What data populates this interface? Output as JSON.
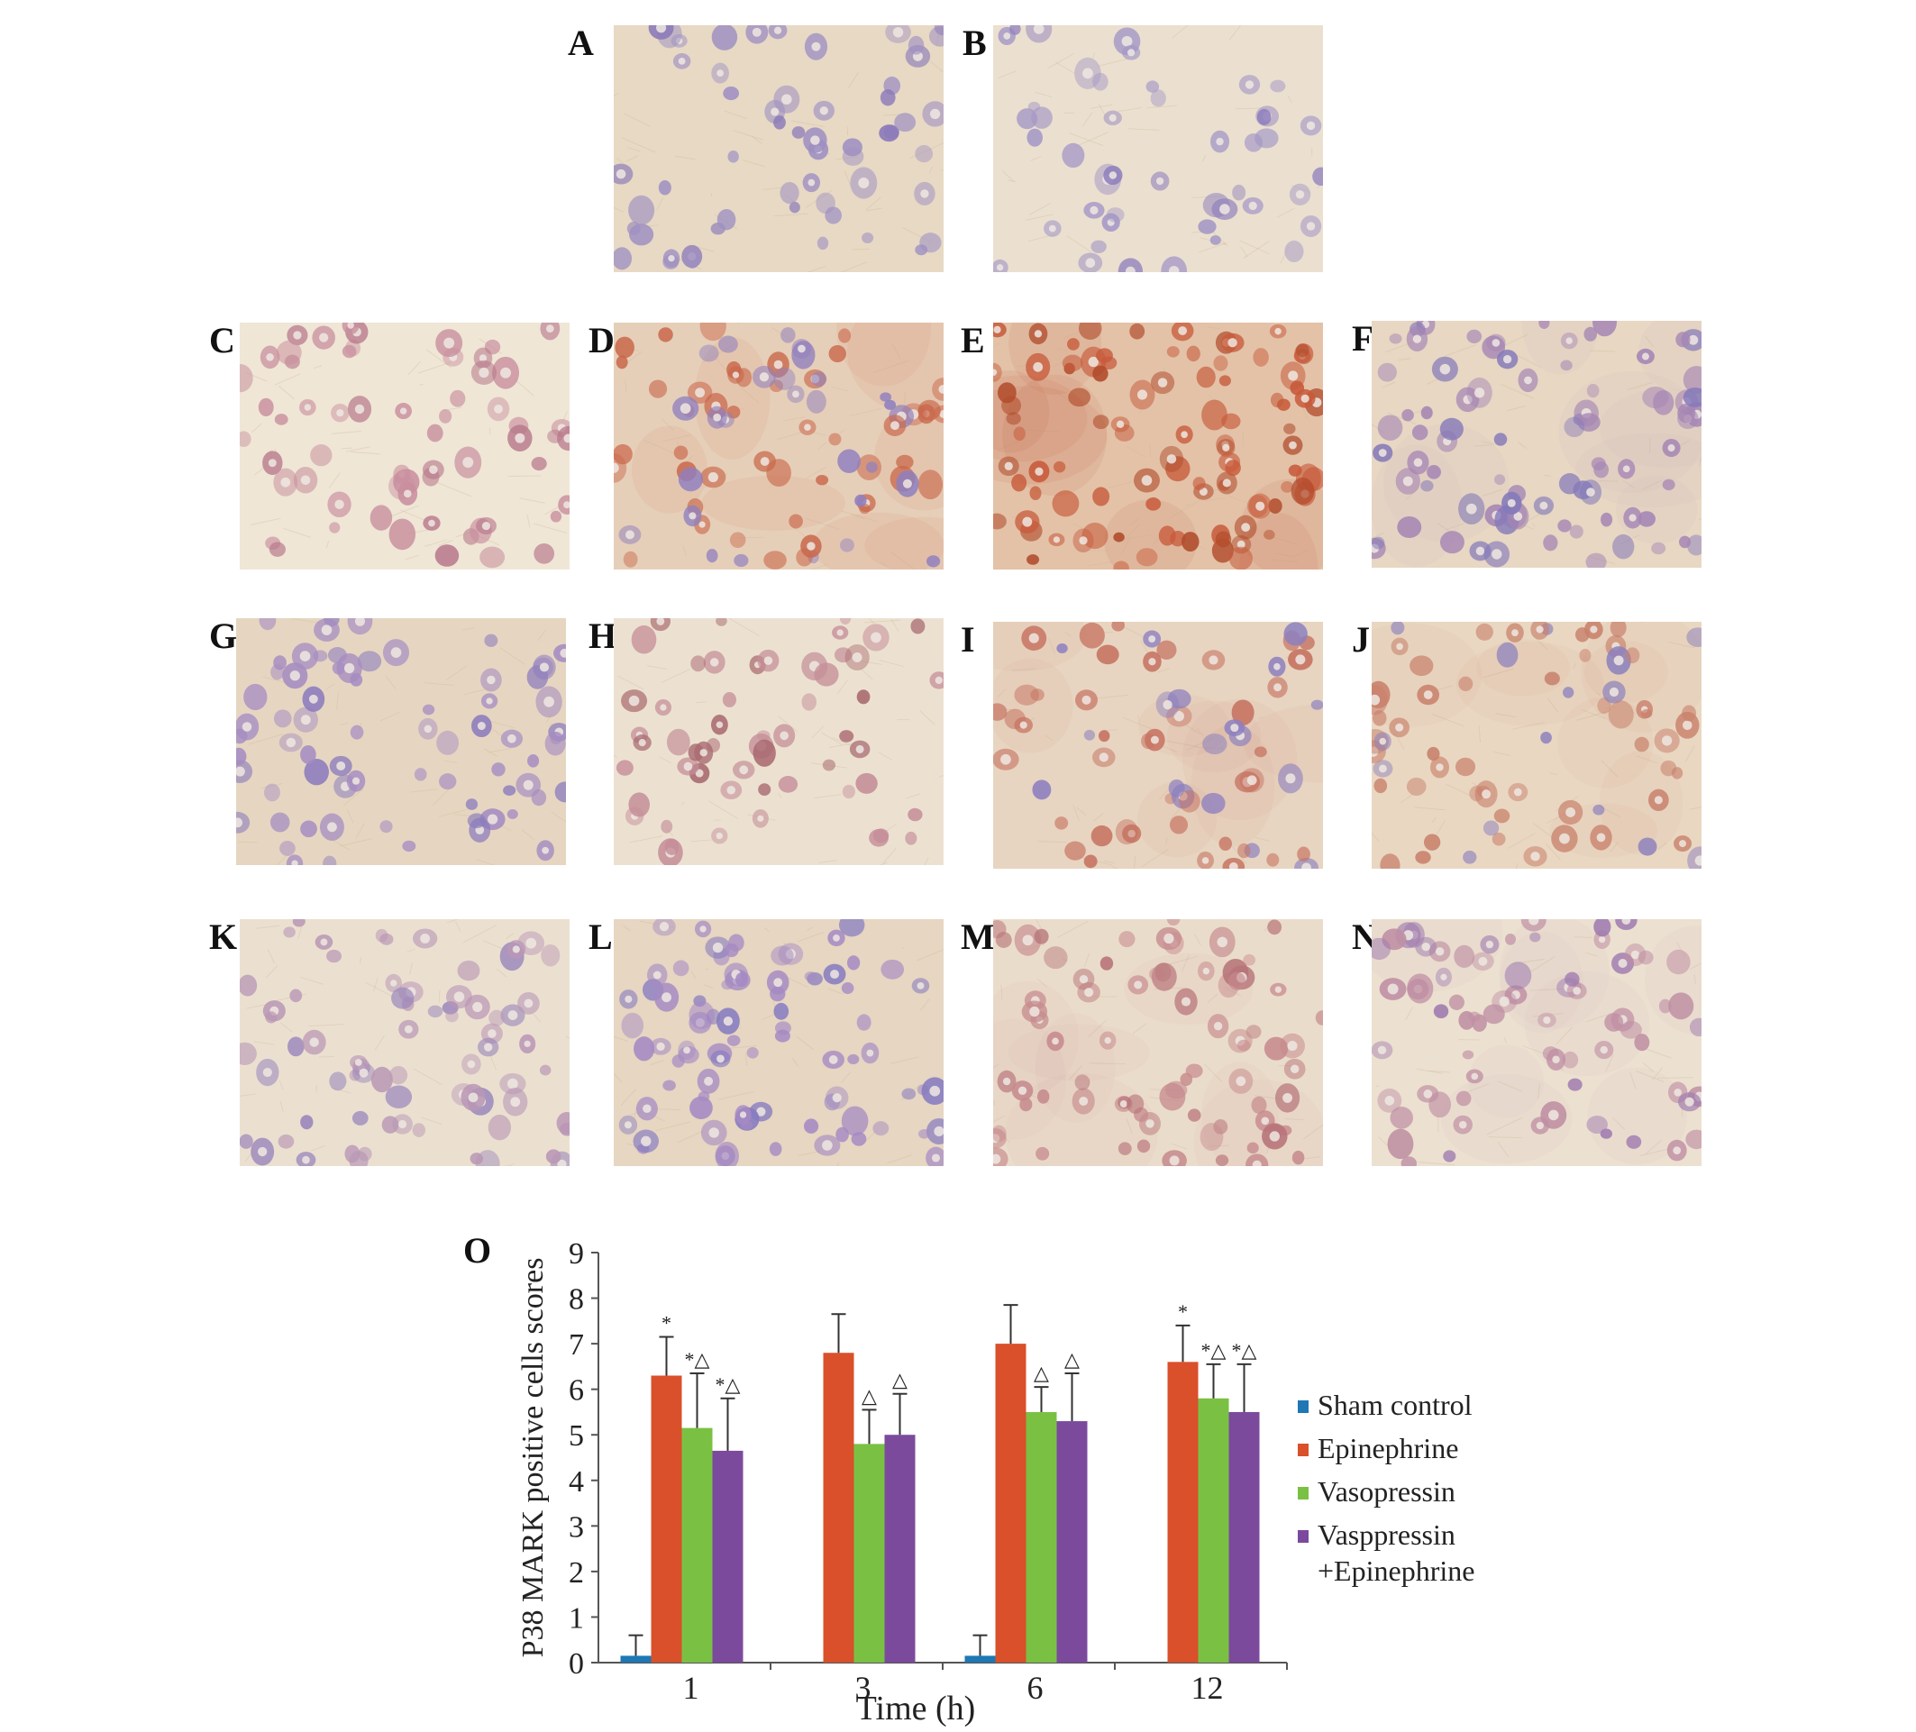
{
  "figure": {
    "panels": [
      {
        "label": "A",
        "tone": "#e7d9c4",
        "cell": "#9e8fc2",
        "dark": "#8a79b8",
        "density": 55,
        "stain": 0.05
      },
      {
        "label": "B",
        "tone": "#ebe0cf",
        "cell": "#a497c6",
        "dark": "#9080bd",
        "density": 45,
        "stain": 0.05
      },
      {
        "label": "C",
        "tone": "#efe6d6",
        "cell": "#c98f9e",
        "dark": "#b7778a",
        "density": 60,
        "stain": 0.2
      },
      {
        "label": "D",
        "tone": "#e6cfb8",
        "cell": "#c9674a",
        "dark": "#8f7fbf",
        "density": 75,
        "stain": 0.65
      },
      {
        "label": "E",
        "tone": "#e3c2a8",
        "cell": "#c75a3a",
        "dark": "#b04b2b",
        "density": 95,
        "stain": 0.85
      },
      {
        "label": "F",
        "tone": "#e7d7c3",
        "cell": "#a686b4",
        "dark": "#8479b9",
        "density": 80,
        "stain": 0.35
      },
      {
        "label": "G",
        "tone": "#e6d6c1",
        "cell": "#a58cc2",
        "dark": "#8b7bbd",
        "density": 70,
        "stain": 0.25
      },
      {
        "label": "H",
        "tone": "#ece1d1",
        "cell": "#c58e98",
        "dark": "#a96a70",
        "density": 55,
        "stain": 0.3
      },
      {
        "label": "I",
        "tone": "#e7d5c1",
        "cell": "#c67260",
        "dark": "#8c7fbf",
        "density": 60,
        "stain": 0.5
      },
      {
        "label": "J",
        "tone": "#e9d7c2",
        "cell": "#c8806a",
        "dark": "#8b80bd",
        "density": 65,
        "stain": 0.45
      },
      {
        "label": "K",
        "tone": "#ebe0d0",
        "cell": "#b997b5",
        "dark": "#9a86bb",
        "density": 70,
        "stain": 0.25
      },
      {
        "label": "L",
        "tone": "#e6d6c2",
        "cell": "#a58ac3",
        "dark": "#857ac0",
        "density": 80,
        "stain": 0.3
      },
      {
        "label": "M",
        "tone": "#eadccb",
        "cell": "#c68a8d",
        "dark": "#b77479",
        "density": 75,
        "stain": 0.45
      },
      {
        "label": "N",
        "tone": "#ece0d0",
        "cell": "#bf8fa3",
        "dark": "#a07cb0",
        "density": 70,
        "stain": 0.35
      }
    ],
    "chart_panel_label": "O"
  },
  "chart_data": {
    "type": "bar",
    "title": "",
    "xlabel": "Time (h)",
    "ylabel": "P38 MARK positive cells scores",
    "ylim": [
      0,
      9
    ],
    "yticks": [
      "0",
      "1",
      "2",
      "3",
      "4",
      "5",
      "6",
      "7",
      "8",
      "9"
    ],
    "categories": [
      "1",
      "3",
      "6",
      "12"
    ],
    "grid": false,
    "legend_position": "right",
    "series": [
      {
        "name": "Sham control",
        "color": "#1f77b4",
        "values": [
          0.15,
          null,
          0.15,
          null
        ],
        "errors": [
          0.45,
          null,
          0.45,
          null
        ],
        "marks": [
          "",
          "",
          "",
          ""
        ]
      },
      {
        "name": "Epinephrine",
        "color": "#d9502b",
        "values": [
          6.3,
          6.8,
          7.0,
          6.6
        ],
        "errors": [
          0.85,
          0.85,
          0.85,
          0.8
        ],
        "marks": [
          "*",
          "",
          "",
          "*"
        ]
      },
      {
        "name": "Vasopressin",
        "color": "#7ac143",
        "values": [
          5.15,
          4.8,
          5.5,
          5.8
        ],
        "errors": [
          1.2,
          0.75,
          0.55,
          0.75
        ],
        "marks": [
          "*△",
          "△",
          "△",
          "*△"
        ]
      },
      {
        "name": "Vasppressin",
        "name_line2": "+Epinephrine",
        "color": "#7b4a9c",
        "values": [
          4.65,
          5.0,
          5.3,
          5.5
        ],
        "errors": [
          1.15,
          0.9,
          1.05,
          1.05
        ],
        "marks": [
          "*△",
          "△",
          "△",
          "*△"
        ]
      }
    ]
  }
}
